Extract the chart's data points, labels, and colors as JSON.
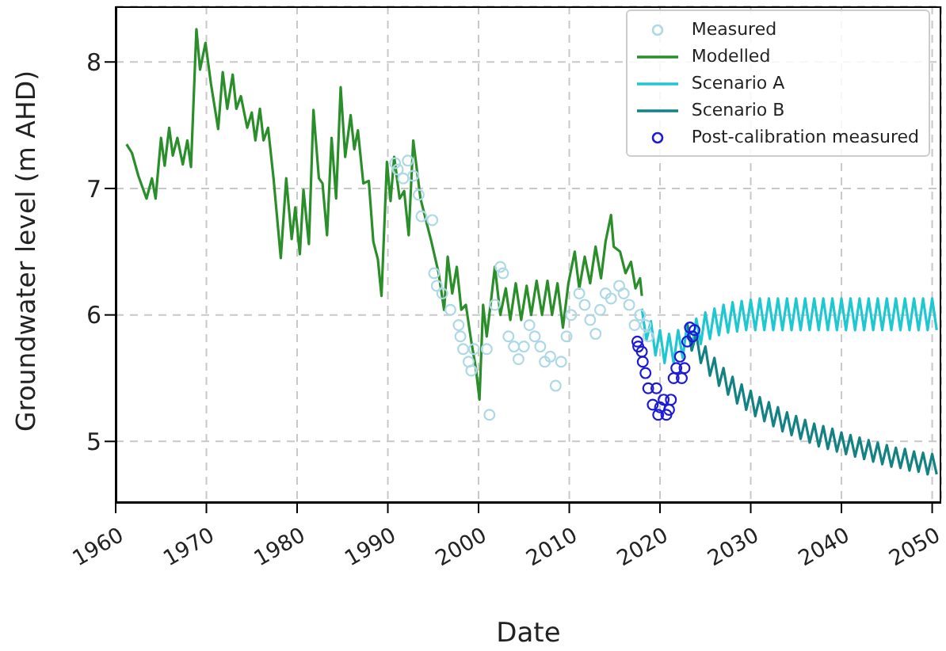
{
  "chart_data": {
    "type": "line",
    "xlabel": "Date",
    "ylabel": "Groundwater level (m AHD)",
    "xlim": [
      1960,
      2051
    ],
    "ylim": [
      4.52,
      8.44
    ],
    "xticks": [
      1960,
      1970,
      1980,
      1990,
      2000,
      2010,
      2020,
      2030,
      2040,
      2050
    ],
    "yticks": [
      5,
      6,
      7,
      8
    ],
    "grid": true,
    "legend": "top right",
    "series": [
      {
        "name": "Measured",
        "type": "scatter",
        "marker": "circle",
        "color": "#add8e6",
        "x": [
          1990.8,
          1991.1,
          1991.7,
          1992.2,
          1992.8,
          1993.4,
          1993.7,
          1994.9,
          1995.1,
          1995.4,
          1996.0,
          1996.9,
          1997.8,
          1998.0,
          1998.3,
          1998.9,
          1999.2,
          1999.5,
          2000.9,
          2001.2,
          2001.8,
          2002.4,
          2002.7,
          2003.3,
          2003.9,
          2004.4,
          2005.0,
          2005.6,
          2006.2,
          2006.8,
          2007.3,
          2007.9,
          2008.5,
          2009.1,
          2009.7,
          2010.2,
          2011.1,
          2011.7,
          2012.3,
          2012.9,
          2013.4,
          2014.0,
          2014.6,
          2015.5,
          2016.0,
          2016.6,
          2017.2,
          2017.8,
          2018.4,
          2018.7
        ],
        "values": [
          7.2,
          7.15,
          7.08,
          7.22,
          7.1,
          6.95,
          6.78,
          6.75,
          6.33,
          6.23,
          6.17,
          6.04,
          5.92,
          5.83,
          5.73,
          5.63,
          5.56,
          5.73,
          5.73,
          5.21,
          6.08,
          6.38,
          6.33,
          5.83,
          5.75,
          5.65,
          5.75,
          5.92,
          5.83,
          5.75,
          5.63,
          5.67,
          5.44,
          5.63,
          5.83,
          6.0,
          6.17,
          6.08,
          5.96,
          5.85,
          6.04,
          6.17,
          6.13,
          6.23,
          6.17,
          6.08,
          5.92,
          6.0,
          5.92,
          5.83
        ]
      },
      {
        "name": "Modelled",
        "type": "line",
        "color": "#2a8f2a",
        "x": [
          1961.2,
          1961.8,
          1962.5,
          1963.4,
          1964.0,
          1964.4,
          1965.0,
          1965.4,
          1965.9,
          1966.3,
          1966.8,
          1967.4,
          1967.9,
          1968.3,
          1968.9,
          1969.3,
          1969.9,
          1970.5,
          1971.3,
          1971.8,
          1972.3,
          1972.9,
          1973.3,
          1973.8,
          1974.5,
          1975.0,
          1975.4,
          1975.9,
          1976.3,
          1976.8,
          1977.4,
          1978.2,
          1978.8,
          1979.4,
          1979.8,
          1980.3,
          1980.7,
          1981.3,
          1981.8,
          1982.4,
          1982.8,
          1983.3,
          1983.8,
          1984.3,
          1984.8,
          1985.3,
          1985.9,
          1986.3,
          1986.7,
          1987.3,
          1987.9,
          1988.4,
          1988.9,
          1989.3,
          1989.9,
          1990.3,
          1990.7,
          1991.3,
          1991.8,
          1992.3,
          1992.8,
          1993.6,
          1994.8,
          1995.6,
          1996.2,
          1996.6,
          1997.1,
          1997.6,
          1998.1,
          1998.6,
          1999.2,
          1999.7,
          2000.1,
          2000.5,
          2000.9,
          2001.4,
          2001.8,
          2002.4,
          2003.0,
          2003.5,
          2004.1,
          2004.7,
          2005.3,
          2005.8,
          2006.4,
          2007.0,
          2007.6,
          2008.1,
          2008.7,
          2009.3,
          2009.9,
          2010.6,
          2011.1,
          2011.7,
          2012.3,
          2012.9,
          2013.5,
          2014.0,
          2014.6,
          2014.9,
          2015.6,
          2016.2,
          2016.8,
          2017.3,
          2017.8,
          2018.0
        ],
        "values": [
          7.35,
          7.28,
          7.1,
          6.92,
          7.08,
          6.92,
          7.4,
          7.18,
          7.48,
          7.26,
          7.4,
          7.19,
          7.38,
          7.17,
          8.26,
          7.94,
          8.15,
          7.83,
          7.47,
          7.92,
          7.63,
          7.9,
          7.63,
          7.73,
          7.48,
          7.6,
          7.38,
          7.63,
          7.38,
          7.48,
          7.08,
          6.45,
          7.08,
          6.6,
          6.85,
          6.48,
          6.99,
          6.56,
          7.62,
          7.08,
          7.04,
          6.63,
          7.4,
          6.92,
          7.8,
          7.25,
          7.58,
          7.31,
          7.46,
          7.04,
          7.06,
          6.58,
          6.44,
          6.15,
          7.21,
          6.9,
          7.25,
          6.92,
          6.98,
          6.63,
          7.38,
          6.92,
          6.58,
          6.33,
          6.04,
          6.46,
          6.17,
          6.38,
          6.04,
          6.08,
          5.79,
          5.58,
          5.33,
          6.08,
          5.83,
          6.13,
          6.38,
          6.0,
          6.21,
          5.96,
          6.25,
          5.96,
          6.23,
          6.0,
          6.27,
          6.0,
          6.27,
          6.0,
          6.25,
          5.9,
          6.25,
          6.5,
          6.21,
          6.46,
          6.25,
          6.54,
          6.29,
          6.58,
          6.79,
          6.54,
          6.5,
          6.33,
          6.42,
          6.21,
          6.29,
          6.15
        ]
      },
      {
        "name": "Scenario A",
        "type": "line",
        "color": "#1ec8d0",
        "x": [
          2018.0,
          2018.5,
          2019.0,
          2019.5,
          2020.0,
          2020.5,
          2021.0,
          2021.5,
          2022.0,
          2022.5,
          2023.0,
          2023.5,
          2024.0,
          2024.5,
          2025.0,
          2025.5,
          2026.0,
          2026.5,
          2027.0,
          2027.5,
          2028.0,
          2028.5,
          2029.0,
          2029.5,
          2030.0,
          2030.5,
          2031.0,
          2031.5,
          2032.0,
          2032.5,
          2033.0,
          2033.5,
          2034.0,
          2034.5,
          2035.0,
          2035.5,
          2036.0,
          2036.5,
          2037.0,
          2037.5,
          2038.0,
          2038.5,
          2039.0,
          2039.5,
          2040.0,
          2040.5,
          2041.0,
          2041.5,
          2042.0,
          2042.5,
          2043.0,
          2043.5,
          2044.0,
          2044.5,
          2045.0,
          2045.5,
          2046.0,
          2046.5,
          2047.0,
          2047.5,
          2048.0,
          2048.5,
          2049.0,
          2049.5,
          2050.0,
          2050.5
        ],
        "values": [
          6.05,
          5.8,
          5.95,
          5.68,
          5.88,
          5.62,
          5.85,
          5.62,
          5.88,
          5.66,
          5.93,
          5.72,
          5.97,
          5.77,
          6.02,
          5.81,
          6.05,
          5.84,
          6.08,
          5.86,
          6.1,
          5.87,
          6.11,
          5.88,
          6.12,
          5.88,
          6.13,
          5.88,
          6.13,
          5.88,
          6.13,
          5.88,
          6.13,
          5.88,
          6.13,
          5.88,
          6.13,
          5.88,
          6.13,
          5.88,
          6.13,
          5.88,
          6.13,
          5.88,
          6.13,
          5.88,
          6.13,
          5.88,
          6.13,
          5.88,
          6.13,
          5.88,
          6.13,
          5.88,
          6.13,
          5.88,
          6.13,
          5.88,
          6.13,
          5.88,
          6.13,
          5.88,
          6.13,
          5.88,
          6.13,
          5.88
        ]
      },
      {
        "name": "Scenario B",
        "type": "line",
        "color": "#148282",
        "x": [
          2023.0,
          2023.5,
          2024.0,
          2024.5,
          2025.0,
          2025.5,
          2026.0,
          2026.5,
          2027.0,
          2027.5,
          2028.0,
          2028.5,
          2029.0,
          2029.5,
          2030.0,
          2030.5,
          2031.0,
          2031.5,
          2032.0,
          2032.5,
          2033.0,
          2033.5,
          2034.0,
          2034.5,
          2035.0,
          2035.5,
          2036.0,
          2036.5,
          2037.0,
          2037.5,
          2038.0,
          2038.5,
          2039.0,
          2039.5,
          2040.0,
          2040.5,
          2041.0,
          2041.5,
          2042.0,
          2042.5,
          2043.0,
          2043.5,
          2044.0,
          2044.5,
          2045.0,
          2045.5,
          2046.0,
          2046.5,
          2047.0,
          2047.5,
          2048.0,
          2048.5,
          2049.0,
          2049.5,
          2050.0,
          2050.5
        ],
        "values": [
          5.93,
          5.72,
          5.85,
          5.62,
          5.75,
          5.52,
          5.66,
          5.44,
          5.58,
          5.37,
          5.51,
          5.3,
          5.45,
          5.25,
          5.4,
          5.2,
          5.35,
          5.16,
          5.31,
          5.12,
          5.27,
          5.08,
          5.23,
          5.05,
          5.2,
          5.02,
          5.17,
          4.99,
          5.14,
          4.96,
          5.12,
          4.94,
          5.1,
          4.92,
          5.07,
          4.9,
          5.05,
          4.88,
          5.03,
          4.86,
          5.01,
          4.84,
          4.99,
          4.82,
          4.97,
          4.8,
          4.95,
          4.79,
          4.94,
          4.77,
          4.92,
          4.76,
          4.91,
          4.74,
          4.9,
          4.74
        ]
      },
      {
        "name": "Post-calibration measured",
        "type": "scatter",
        "marker": "circle",
        "color": "#1a1ad8",
        "x": [
          2017.5,
          2017.6,
          2018.0,
          2018.1,
          2018.4,
          2018.7,
          2019.2,
          2019.6,
          2019.8,
          2020.0,
          2020.4,
          2020.7,
          2021.0,
          2021.2,
          2021.5,
          2021.8,
          2022.2,
          2022.4,
          2022.7,
          2023.0,
          2023.3,
          2023.6,
          2023.8
        ],
        "values": [
          5.79,
          5.75,
          5.71,
          5.63,
          5.54,
          5.42,
          5.29,
          5.42,
          5.21,
          5.27,
          5.33,
          5.21,
          5.25,
          5.33,
          5.5,
          5.58,
          5.67,
          5.5,
          5.58,
          5.79,
          5.9,
          5.83,
          5.88
        ]
      }
    ]
  }
}
